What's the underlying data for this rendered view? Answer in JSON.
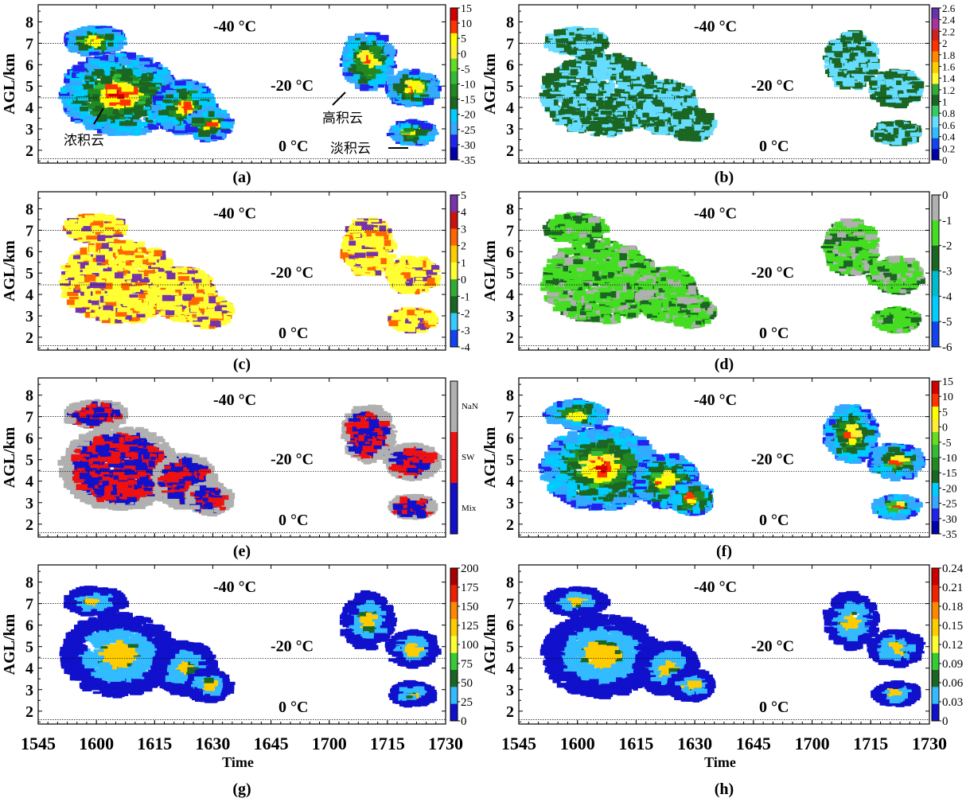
{
  "figure": {
    "ylabel": "AGL/km",
    "xlabel": "Time",
    "y_ticks": [
      "2",
      "3",
      "4",
      "5",
      "6",
      "7",
      "8"
    ],
    "x_ticks": [
      "1545",
      "1600",
      "1615",
      "1630",
      "1645",
      "1700",
      "1715",
      "1730"
    ],
    "isotherms": [
      {
        "label": "-40 °C",
        "height_km": 7.0
      },
      {
        "label": "-20 °C",
        "height_km": 4.45
      },
      {
        "label": "0 °C",
        "height_km": 1.6
      }
    ]
  },
  "chart_data": [
    {
      "id": "a",
      "type": "heatmap",
      "label": "(a)",
      "ylim": [
        1.4,
        8.8
      ],
      "xlim": [
        "1545",
        "1730"
      ],
      "colorbar_ticks": [
        "15",
        "10",
        "5",
        "0",
        "-5",
        "-10",
        "-15",
        "-20",
        "-25",
        "-30",
        "-35"
      ],
      "colors": [
        "#d40000",
        "#ff3300",
        "#ffff00",
        "#ffee33",
        "#66dd22",
        "#33bb33",
        "#228822",
        "#1a6622",
        "#00ccff",
        "#33aaff",
        "#2222ee",
        "#0000aa"
      ],
      "annotations": [
        {
          "text": "浓积云"
        },
        {
          "text": "高积云"
        },
        {
          "text": "淡积云"
        }
      ]
    },
    {
      "id": "b",
      "type": "heatmap",
      "label": "(b)",
      "ylim": [
        1.4,
        8.8
      ],
      "xlim": [
        "1545",
        "1730"
      ],
      "colorbar_ticks": [
        "2.6",
        "2.4",
        "2.2",
        "2",
        "1.8",
        "1.6",
        "1.4",
        "1.2",
        "1",
        "0.8",
        "0.6",
        "0.4",
        "0.2",
        "0"
      ],
      "colors": [
        "#6633aa",
        "#aa3399",
        "#cc2222",
        "#ff3300",
        "#ff8800",
        "#ffcc00",
        "#ffff33",
        "#33aa33",
        "#1a6622",
        "#33cc66",
        "#66ddff",
        "#33bbff",
        "#1144ee",
        "#0000aa"
      ]
    },
    {
      "id": "c",
      "type": "heatmap",
      "label": "(c)",
      "ylim": [
        1.4,
        8.8
      ],
      "xlim": [
        "1545",
        "1730"
      ],
      "colorbar_ticks": [
        "5",
        "4",
        "3",
        "2",
        "1",
        "0",
        "-1",
        "-2",
        "-3",
        "-4"
      ],
      "colors": [
        "#7733aa",
        "#cc1111",
        "#ff6600",
        "#ffcc00",
        "#ffff33",
        "#33aa33",
        "#1a6622",
        "#33ccff",
        "#1144ee"
      ]
    },
    {
      "id": "d",
      "type": "heatmap",
      "label": "(d)",
      "ylim": [
        1.4,
        8.8
      ],
      "xlim": [
        "1545",
        "1730"
      ],
      "colorbar_ticks": [
        "0",
        "-1",
        "-2",
        "-3",
        "-4",
        "-5",
        "-6"
      ],
      "colors": [
        "#b0b0b0",
        "#44dd22",
        "#1a6622",
        "#00bbcc",
        "#00ccff",
        "#1144ee"
      ]
    },
    {
      "id": "e",
      "type": "heatmap",
      "label": "(e)",
      "ylim": [
        1.4,
        8.8
      ],
      "xlim": [
        "1545",
        "1730"
      ],
      "categories": [
        "NaN",
        "SW",
        "Mix"
      ],
      "colors": [
        "#b0b0b0",
        "#ee1111",
        "#1111cc"
      ]
    },
    {
      "id": "f",
      "type": "heatmap",
      "label": "(f)",
      "ylim": [
        1.4,
        8.8
      ],
      "xlim": [
        "1545",
        "1730"
      ],
      "colorbar_ticks": [
        "15",
        "10",
        "5",
        "0",
        "-5",
        "-10",
        "-15",
        "-20",
        "-25",
        "-30",
        "-35"
      ],
      "colors": [
        "#d40000",
        "#ff3300",
        "#ffff00",
        "#ffee33",
        "#66dd22",
        "#33bb33",
        "#228822",
        "#1a6622",
        "#00ccff",
        "#33aaff",
        "#2222ee",
        "#0000aa"
      ]
    },
    {
      "id": "g",
      "type": "heatmap",
      "label": "(g)",
      "ylim": [
        1.4,
        8.8
      ],
      "xlim": [
        "1545",
        "1730"
      ],
      "colorbar_ticks": [
        "200",
        "175",
        "150",
        "125",
        "100",
        "75",
        "50",
        "25",
        "0"
      ],
      "colors": [
        "#aa0000",
        "#ee2200",
        "#ff8800",
        "#ffcc00",
        "#ffff33",
        "#33cc33",
        "#1a6622",
        "#33bbff",
        "#1111cc"
      ]
    },
    {
      "id": "h",
      "type": "heatmap",
      "label": "(h)",
      "ylim": [
        1.4,
        8.8
      ],
      "xlim": [
        "1545",
        "1730"
      ],
      "colorbar_ticks": [
        "0.24",
        "0.21",
        "0.18",
        "0.15",
        "0.12",
        "0.09",
        "0.06",
        "0.03",
        "0"
      ],
      "colors": [
        "#cc0000",
        "#ee2200",
        "#ff8800",
        "#ffcc00",
        "#ffff33",
        "#33cc33",
        "#1a6622",
        "#33bbff",
        "#1111cc"
      ]
    }
  ]
}
